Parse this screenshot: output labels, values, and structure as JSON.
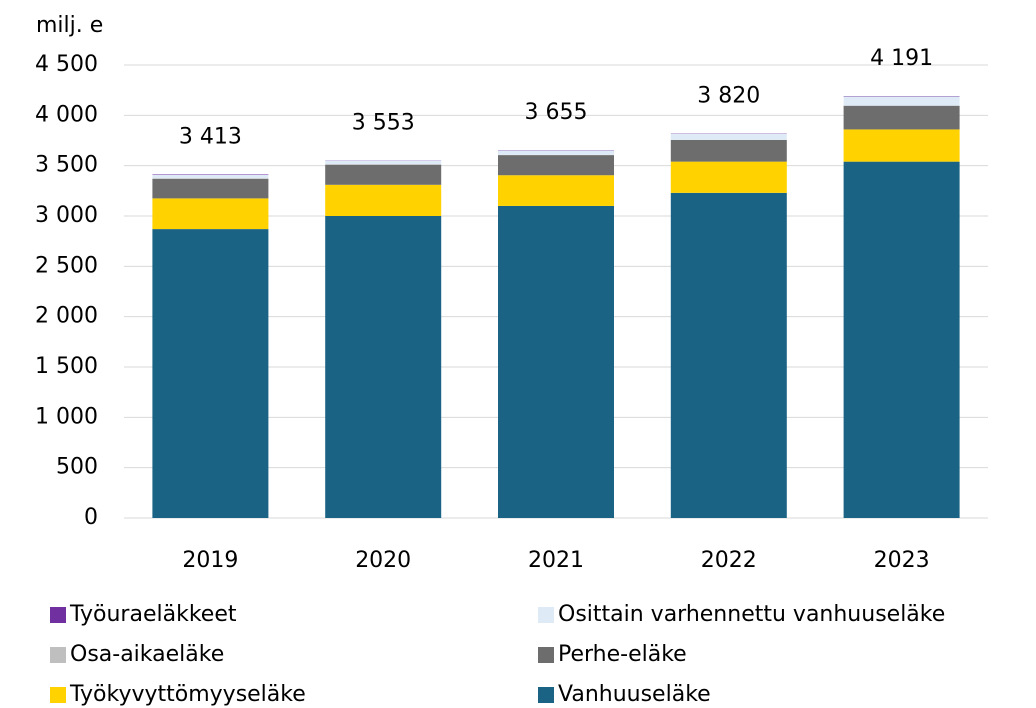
{
  "chart_data": {
    "type": "stacked_bar",
    "y_axis_label": "milj. e",
    "categories": [
      "2019",
      "2020",
      "2021",
      "2022",
      "2023"
    ],
    "series": [
      {
        "name": "Työuraeläkkeet",
        "color": "#7030a0",
        "values": [
          5,
          2,
          3,
          3,
          4
        ]
      },
      {
        "name": "Osittain varhennettu vanhuuseläke",
        "color": "#deebf7",
        "values": [
          33,
          38,
          45,
          60,
          90
        ]
      },
      {
        "name": "Osa-aikaeläke",
        "color": "#bfbfbf",
        "values": [
          5,
          3,
          2,
          2,
          2
        ]
      },
      {
        "name": "Perhe-eläke",
        "color": "#6d6d6d",
        "values": [
          195,
          200,
          200,
          215,
          235
        ]
      },
      {
        "name": "Työkyvyttömyyseläke",
        "color": "#ffd200",
        "values": [
          305,
          310,
          305,
          310,
          320
        ]
      },
      {
        "name": "Vanhuuseläke",
        "color": "#1b6385",
        "values": [
          2870,
          3000,
          3100,
          3230,
          3540
        ]
      }
    ],
    "totals": [
      3413,
      3553,
      3655,
      3820,
      4191
    ],
    "total_labels": [
      "3 413",
      "3 553",
      "3 655",
      "3 820",
      "4 191"
    ],
    "ylim": [
      0,
      4500
    ],
    "yticks": [
      0,
      500,
      {
        "value": 1000,
        "label": "1 000"
      },
      {
        "value": 1500,
        "label": "1 500"
      },
      {
        "value": 2000,
        "label": "2 000"
      },
      {
        "value": 2500,
        "label": "2 500"
      },
      {
        "value": 3000,
        "label": "3 000"
      },
      {
        "value": 3500,
        "label": "3 500"
      },
      {
        "value": 4000,
        "label": "4 000"
      },
      {
        "value": 4500,
        "label": "4 500"
      }
    ],
    "grid": true
  }
}
